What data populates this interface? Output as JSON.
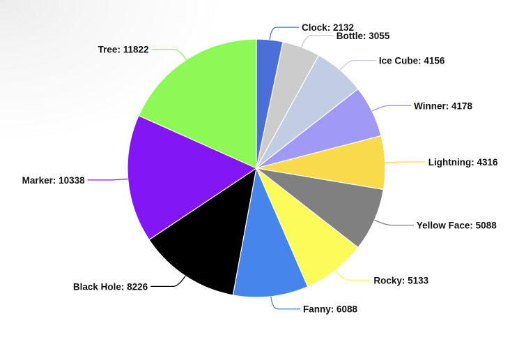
{
  "chart_data": {
    "type": "pie",
    "title": "",
    "slices": [
      {
        "label": "Clock",
        "value": 2132,
        "color": "#4a6fd6"
      },
      {
        "label": "Bottle",
        "value": 3055,
        "color": "#cccccc"
      },
      {
        "label": "Ice Cube",
        "value": 4156,
        "color": "#c2cde3"
      },
      {
        "label": "Winner",
        "value": 4178,
        "color": "#a099f5"
      },
      {
        "label": "Lightning",
        "value": 4316,
        "color": "#f8da4b"
      },
      {
        "label": "Yellow Face",
        "value": 5088,
        "color": "#808080"
      },
      {
        "label": "Rocky",
        "value": 5133,
        "color": "#fbfb5a"
      },
      {
        "label": "Fanny",
        "value": 6088,
        "color": "#4585ec"
      },
      {
        "label": "Black Hole",
        "value": 8226,
        "color": "#000000"
      },
      {
        "label": "Marker",
        "value": 10338,
        "color": "#8316f4"
      },
      {
        "label": "Tree",
        "value": 11822,
        "color": "#8cf956"
      }
    ],
    "start_angle_deg": 0,
    "direction": "clockwise",
    "legend": "none",
    "data_labels": "outside-with-leader-lines"
  }
}
